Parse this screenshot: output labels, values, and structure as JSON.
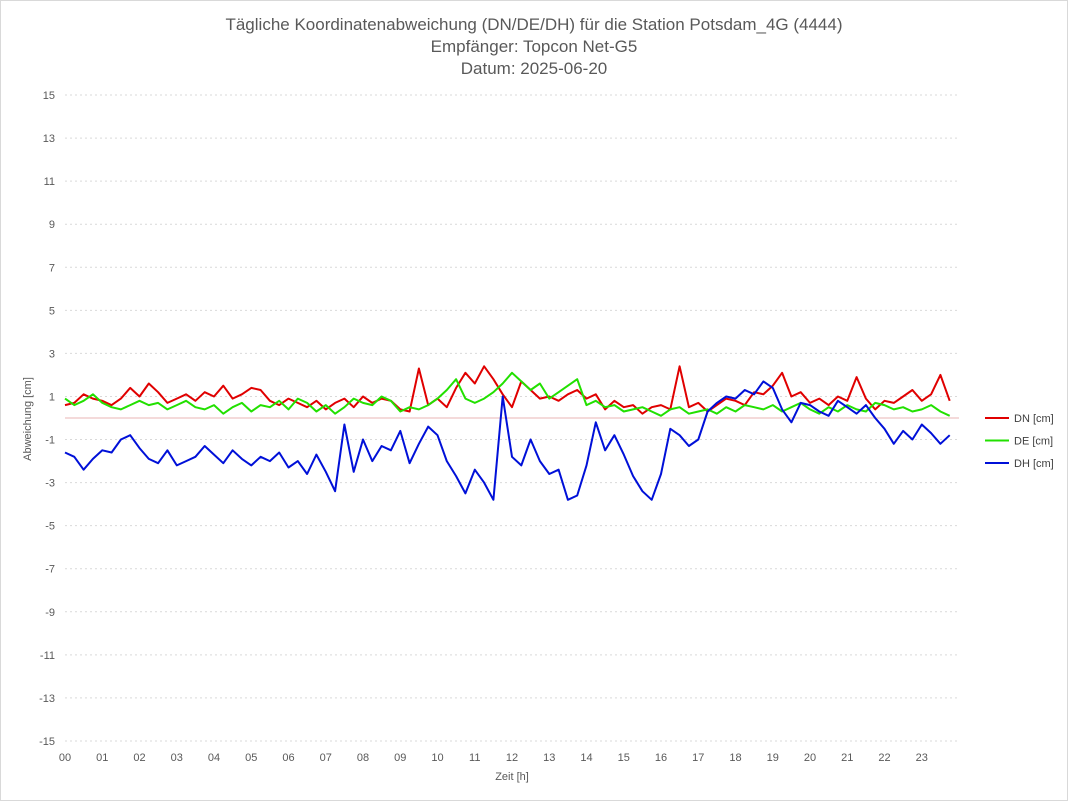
{
  "chart_data": {
    "type": "line",
    "title": [
      "Tägliche Koordinatenabweichung (DN/DE/DH) für die Station Potsdam_4G (4444)",
      "Empfänger: Topcon Net-G5",
      "Datum: 2025-06-20"
    ],
    "xlabel": "Zeit [h]",
    "ylabel": "Abweichung [cm]",
    "xlim": [
      0,
      24
    ],
    "ylim": [
      -15,
      15
    ],
    "yticks": [
      15,
      13,
      11,
      9,
      7,
      5,
      3,
      1,
      -1,
      -3,
      -5,
      -7,
      -9,
      -11,
      -13,
      -15
    ],
    "xticks": [
      "00",
      "01",
      "02",
      "03",
      "04",
      "05",
      "06",
      "07",
      "08",
      "09",
      "10",
      "11",
      "12",
      "13",
      "14",
      "15",
      "16",
      "17",
      "18",
      "19",
      "20",
      "21",
      "22",
      "23"
    ],
    "grid": true,
    "legend": "right",
    "x": [
      0.0,
      0.25,
      0.5,
      0.75,
      1.0,
      1.25,
      1.5,
      1.75,
      2.0,
      2.25,
      2.5,
      2.75,
      3.0,
      3.25,
      3.5,
      3.75,
      4.0,
      4.25,
      4.5,
      4.75,
      5.0,
      5.25,
      5.5,
      5.75,
      6.0,
      6.25,
      6.5,
      6.75,
      7.0,
      7.25,
      7.5,
      7.75,
      8.0,
      8.25,
      8.5,
      8.75,
      9.0,
      9.25,
      9.5,
      9.75,
      10.0,
      10.25,
      10.5,
      10.75,
      11.0,
      11.25,
      11.5,
      11.75,
      12.0,
      12.25,
      12.5,
      12.75,
      13.0,
      13.25,
      13.5,
      13.75,
      14.0,
      14.25,
      14.5,
      14.75,
      15.0,
      15.25,
      15.5,
      15.75,
      16.0,
      16.25,
      16.5,
      16.75,
      17.0,
      17.25,
      17.5,
      17.75,
      18.0,
      18.25,
      18.5,
      18.75,
      19.0,
      19.25,
      19.5,
      19.75,
      20.0,
      20.25,
      20.5,
      20.75,
      21.0,
      21.25,
      21.5,
      21.75,
      22.0,
      22.25,
      22.5,
      22.75,
      23.0,
      23.25,
      23.5,
      23.75
    ],
    "series": [
      {
        "name": "DN [cm]",
        "color": "#e00000",
        "values": [
          0.6,
          0.7,
          1.1,
          0.9,
          0.8,
          0.6,
          0.9,
          1.4,
          1.0,
          1.6,
          1.2,
          0.7,
          0.9,
          1.1,
          0.8,
          1.2,
          1.0,
          1.5,
          0.9,
          1.1,
          1.4,
          1.3,
          0.8,
          0.6,
          0.9,
          0.7,
          0.5,
          0.8,
          0.4,
          0.7,
          0.9,
          0.5,
          1.0,
          0.7,
          0.9,
          0.8,
          0.4,
          0.3,
          2.3,
          0.6,
          0.9,
          0.5,
          1.4,
          2.1,
          1.6,
          2.4,
          1.8,
          1.1,
          0.5,
          1.7,
          1.3,
          0.9,
          1.0,
          0.8,
          1.1,
          1.3,
          0.9,
          1.1,
          0.4,
          0.8,
          0.5,
          0.6,
          0.2,
          0.5,
          0.6,
          0.4,
          2.4,
          0.5,
          0.7,
          0.3,
          0.6,
          0.9,
          0.8,
          0.6,
          1.2,
          1.1,
          1.5,
          2.1,
          1.0,
          1.2,
          0.7,
          0.9,
          0.6,
          1.0,
          0.8,
          1.9,
          0.9,
          0.4,
          0.8,
          0.7,
          1.0,
          1.3,
          0.8,
          1.1,
          2.0,
          0.8
        ]
      },
      {
        "name": "DE [cm]",
        "color": "#22e000",
        "values": [
          0.9,
          0.6,
          0.8,
          1.1,
          0.7,
          0.5,
          0.4,
          0.6,
          0.8,
          0.6,
          0.7,
          0.4,
          0.6,
          0.8,
          0.5,
          0.4,
          0.6,
          0.2,
          0.5,
          0.7,
          0.3,
          0.6,
          0.5,
          0.8,
          0.4,
          0.9,
          0.7,
          0.3,
          0.6,
          0.2,
          0.5,
          0.9,
          0.7,
          0.6,
          1.0,
          0.8,
          0.3,
          0.5,
          0.4,
          0.6,
          0.9,
          1.3,
          1.8,
          0.9,
          0.7,
          0.9,
          1.2,
          1.6,
          2.1,
          1.7,
          1.3,
          1.6,
          0.9,
          1.2,
          1.5,
          1.8,
          0.6,
          0.8,
          0.5,
          0.6,
          0.3,
          0.4,
          0.5,
          0.3,
          0.1,
          0.4,
          0.5,
          0.2,
          0.3,
          0.4,
          0.2,
          0.5,
          0.3,
          0.6,
          0.5,
          0.4,
          0.6,
          0.3,
          0.5,
          0.7,
          0.4,
          0.2,
          0.5,
          0.3,
          0.6,
          0.4,
          0.3,
          0.7,
          0.6,
          0.4,
          0.5,
          0.3,
          0.4,
          0.6,
          0.3,
          0.1
        ]
      },
      {
        "name": "DH [cm]",
        "color": "#0010d8",
        "values": [
          -1.6,
          -1.8,
          -2.4,
          -1.9,
          -1.5,
          -1.6,
          -1.0,
          -0.8,
          -1.4,
          -1.9,
          -2.1,
          -1.5,
          -2.2,
          -2.0,
          -1.8,
          -1.3,
          -1.7,
          -2.1,
          -1.5,
          -1.9,
          -2.2,
          -1.8,
          -2.0,
          -1.6,
          -2.3,
          -2.0,
          -2.6,
          -1.7,
          -2.5,
          -3.4,
          -0.3,
          -2.5,
          -1.0,
          -2.0,
          -1.3,
          -1.5,
          -0.6,
          -2.1,
          -1.2,
          -0.4,
          -0.8,
          -2.0,
          -2.7,
          -3.5,
          -2.4,
          -3.0,
          -3.8,
          1.0,
          -1.8,
          -2.2,
          -1.0,
          -2.0,
          -2.6,
          -2.4,
          -3.8,
          -3.6,
          -2.2,
          -0.2,
          -1.5,
          -0.8,
          -1.7,
          -2.7,
          -3.4,
          -3.8,
          -2.6,
          -0.5,
          -0.8,
          -1.3,
          -1.0,
          0.3,
          0.7,
          1.0,
          0.9,
          1.3,
          1.1,
          1.7,
          1.4,
          0.4,
          -0.2,
          0.7,
          0.6,
          0.3,
          0.1,
          0.8,
          0.5,
          0.2,
          0.6,
          0.0,
          -0.5,
          -1.2,
          -0.6,
          -1.0,
          -0.3,
          -0.7,
          -1.2,
          -0.8
        ]
      }
    ]
  }
}
